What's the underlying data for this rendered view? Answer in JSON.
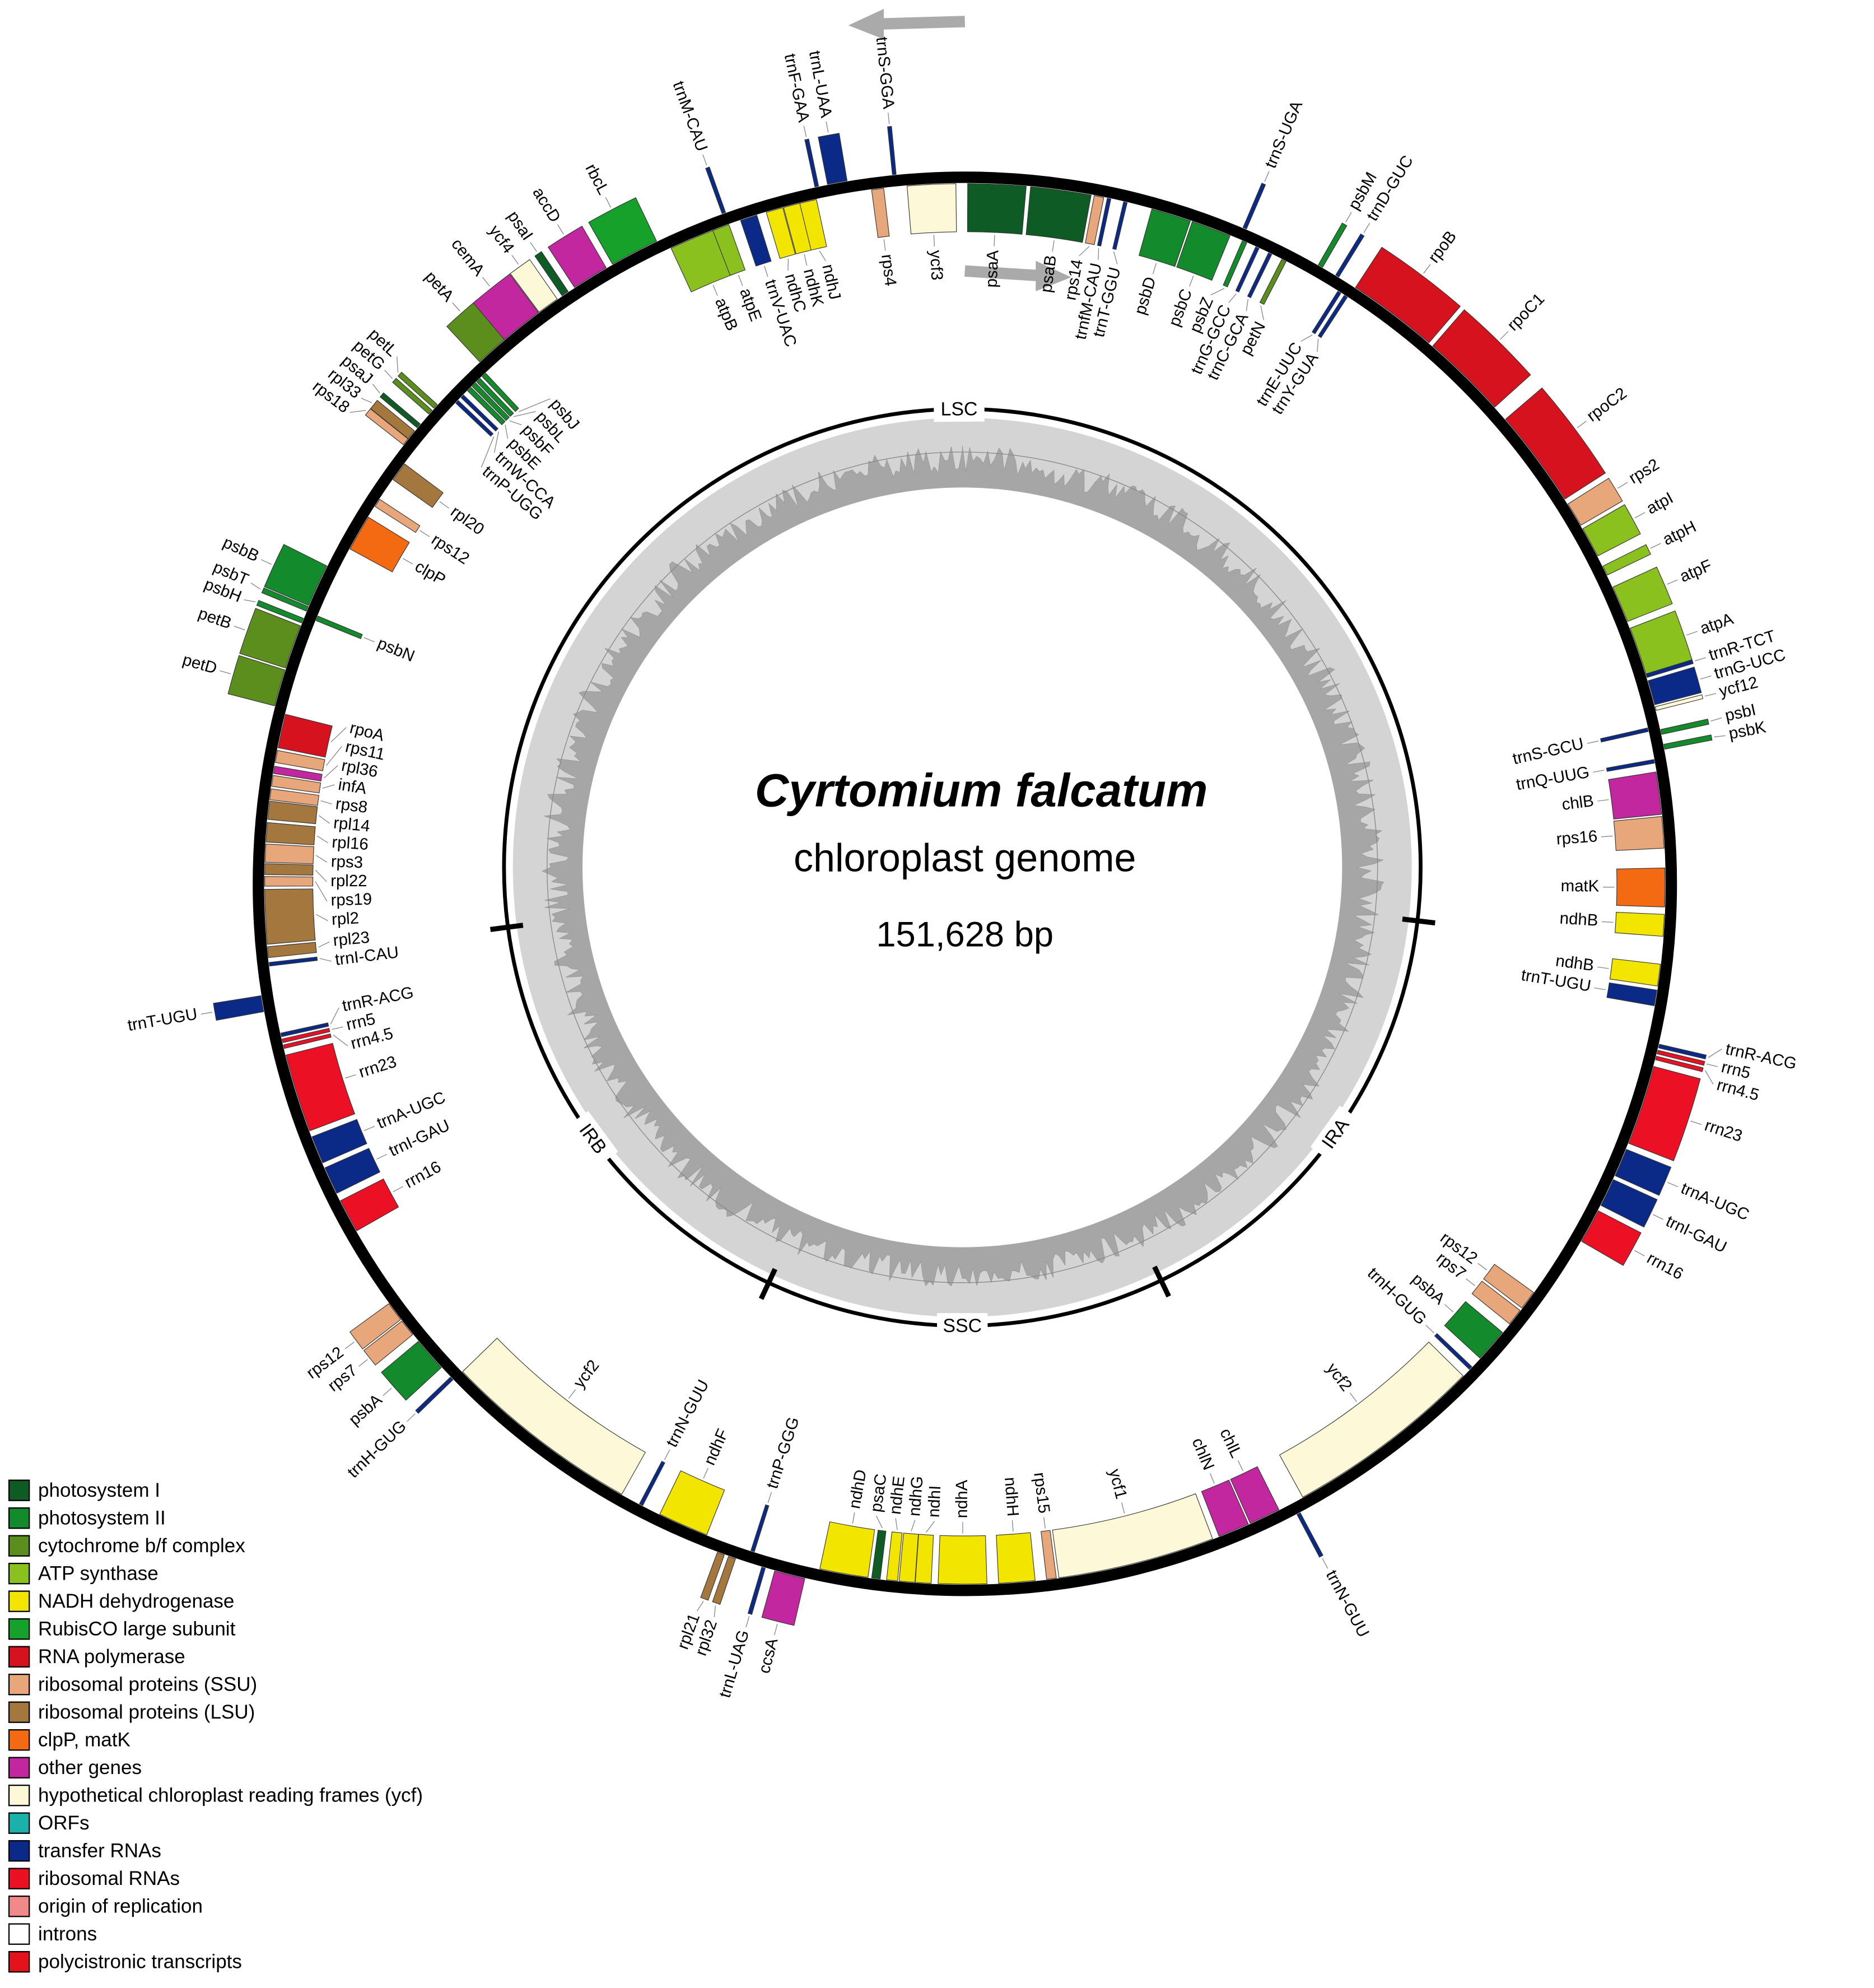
{
  "title": "Cyrtomium falcatum",
  "subtitle": "chloroplast genome",
  "size": "151,628 bp",
  "regions": [
    "LSC",
    "IRA",
    "SSC",
    "IRB"
  ],
  "genes": [
    {
      "name": "psaA",
      "color": "#0e5b25"
    },
    {
      "name": "psaB",
      "color": "#0e5b25"
    },
    {
      "name": "rps14",
      "color": "#e8a77a"
    },
    {
      "name": "trnfM-CAU",
      "color": "#0b2a87"
    },
    {
      "name": "trnT-GGU",
      "color": "#0b2a87"
    },
    {
      "name": "psbD",
      "color": "#138a2b"
    },
    {
      "name": "psbC",
      "color": "#138a2b"
    },
    {
      "name": "trnS-UGA",
      "color": "#0b2a87"
    },
    {
      "name": "psbZ",
      "color": "#138a2b"
    },
    {
      "name": "trnG-GCC",
      "color": "#0b2a87"
    },
    {
      "name": "trnC-GCA",
      "color": "#0b2a87"
    },
    {
      "name": "petN",
      "color": "#5b8e1c"
    },
    {
      "name": "psbM",
      "color": "#138a2b"
    },
    {
      "name": "trnD-GUC",
      "color": "#0b2a87"
    },
    {
      "name": "trnE-UUC",
      "color": "#0b2a87"
    },
    {
      "name": "trnY-GUA",
      "color": "#0b2a87"
    },
    {
      "name": "rpoB",
      "color": "#d7121f"
    },
    {
      "name": "rpoC1",
      "color": "#d7121f"
    },
    {
      "name": "rpoC2",
      "color": "#d7121f"
    },
    {
      "name": "rps2",
      "color": "#e8a77a"
    },
    {
      "name": "atpI",
      "color": "#8bc11e"
    },
    {
      "name": "atpH",
      "color": "#8bc11e"
    },
    {
      "name": "atpF",
      "color": "#8bc11e"
    },
    {
      "name": "atpA",
      "color": "#8bc11e"
    },
    {
      "name": "trnR-TCT",
      "color": "#0b2a87"
    },
    {
      "name": "trnG-UCC",
      "color": "#0b2a87"
    },
    {
      "name": "ycf12",
      "color": "#fdf9d8"
    },
    {
      "name": "trnS-GCU",
      "color": "#0b2a87"
    },
    {
      "name": "psbI",
      "color": "#138a2b"
    },
    {
      "name": "psbK",
      "color": "#138a2b"
    },
    {
      "name": "trnQ-UUG",
      "color": "#0b2a87"
    },
    {
      "name": "chlB",
      "color": "#c3279f"
    },
    {
      "name": "rps16",
      "color": "#e8a77a"
    },
    {
      "name": "matK",
      "color": "#f36a12"
    },
    {
      "name": "ndhB",
      "color": "#f2e600"
    },
    {
      "name": "ndhB",
      "color": "#f2e600"
    },
    {
      "name": "trnT-UGU",
      "color": "#0b2a87"
    },
    {
      "name": "trnR-ACG",
      "color": "#0b2a87"
    },
    {
      "name": "rrn5",
      "color": "#ec1025"
    },
    {
      "name": "rrn4.5",
      "color": "#ec1025"
    },
    {
      "name": "rrn23",
      "color": "#ec1025"
    },
    {
      "name": "trnA-UGC",
      "color": "#0b2a87"
    },
    {
      "name": "trnI-GAU",
      "color": "#0b2a87"
    },
    {
      "name": "rrn16",
      "color": "#ec1025"
    },
    {
      "name": "rps12",
      "color": "#e8a77a"
    },
    {
      "name": "rps7",
      "color": "#e8a77a"
    },
    {
      "name": "psbA",
      "color": "#138a2b"
    },
    {
      "name": "trnH-GUG",
      "color": "#0b2a87"
    },
    {
      "name": "ycf2",
      "color": "#fdf9d8"
    },
    {
      "name": "trnN-GUU",
      "color": "#0b2a87"
    },
    {
      "name": "chlL",
      "color": "#c3279f"
    },
    {
      "name": "chlN",
      "color": "#c3279f"
    },
    {
      "name": "ycf1",
      "color": "#fdf9d8"
    },
    {
      "name": "rps15",
      "color": "#e8a77a"
    },
    {
      "name": "ndhH",
      "color": "#f2e600"
    },
    {
      "name": "ndhA",
      "color": "#f2e600"
    },
    {
      "name": "ndhI",
      "color": "#f2e600"
    },
    {
      "name": "ndhG",
      "color": "#f2e600"
    },
    {
      "name": "ndhE",
      "color": "#f2e600"
    },
    {
      "name": "psaC",
      "color": "#0e5b25"
    },
    {
      "name": "ndhD",
      "color": "#f2e600"
    },
    {
      "name": "ccsA",
      "color": "#c3279f"
    },
    {
      "name": "trnL-UAG",
      "color": "#0b2a87"
    },
    {
      "name": "trnP-GGG",
      "color": "#0b2a87"
    },
    {
      "name": "rpl32",
      "color": "#a4773f"
    },
    {
      "name": "rpl21",
      "color": "#a4773f"
    },
    {
      "name": "ndhF",
      "color": "#f2e600"
    },
    {
      "name": "trnN-GUU",
      "color": "#0b2a87"
    },
    {
      "name": "ycf2",
      "color": "#fdf9d8"
    },
    {
      "name": "trnH-GUG",
      "color": "#0b2a87"
    },
    {
      "name": "psbA",
      "color": "#138a2b"
    },
    {
      "name": "rps7",
      "color": "#e8a77a"
    },
    {
      "name": "rps12",
      "color": "#e8a77a"
    },
    {
      "name": "rrn16",
      "color": "#ec1025"
    },
    {
      "name": "trnI-GAU",
      "color": "#0b2a87"
    },
    {
      "name": "trnA-UGC",
      "color": "#0b2a87"
    },
    {
      "name": "rrn23",
      "color": "#ec1025"
    },
    {
      "name": "rrn4.5",
      "color": "#ec1025"
    },
    {
      "name": "rrn5",
      "color": "#ec1025"
    },
    {
      "name": "trnR-ACG",
      "color": "#0b2a87"
    },
    {
      "name": "trnT-UGU",
      "color": "#0b2a87"
    },
    {
      "name": "trnI-CAU",
      "color": "#0b2a87"
    },
    {
      "name": "rpl23",
      "color": "#a4773f"
    },
    {
      "name": "rpl2",
      "color": "#a4773f"
    },
    {
      "name": "rps19",
      "color": "#e8a77a"
    },
    {
      "name": "rpl22",
      "color": "#a4773f"
    },
    {
      "name": "rps3",
      "color": "#e8a77a"
    },
    {
      "name": "rpl16",
      "color": "#a4773f"
    },
    {
      "name": "rpl14",
      "color": "#a4773f"
    },
    {
      "name": "rps8",
      "color": "#e8a77a"
    },
    {
      "name": "infA",
      "color": "#e8a77a"
    },
    {
      "name": "rpl36",
      "color": "#c3279f"
    },
    {
      "name": "rps11",
      "color": "#e8a77a"
    },
    {
      "name": "rpoA",
      "color": "#d7121f"
    },
    {
      "name": "petD",
      "color": "#5b8e1c"
    },
    {
      "name": "petB",
      "color": "#5b8e1c"
    },
    {
      "name": "psbH",
      "color": "#138a2b"
    },
    {
      "name": "psbN",
      "color": "#138a2b"
    },
    {
      "name": "psbT",
      "color": "#138a2b"
    },
    {
      "name": "psbB",
      "color": "#138a2b"
    },
    {
      "name": "clpP",
      "color": "#f36a12"
    },
    {
      "name": "rps12",
      "color": "#e8a77a"
    },
    {
      "name": "rpl20",
      "color": "#a4773f"
    },
    {
      "name": "rps18",
      "color": "#e8a77a"
    },
    {
      "name": "rpl33",
      "color": "#a4773f"
    },
    {
      "name": "psaJ",
      "color": "#0e5b25"
    },
    {
      "name": "petG",
      "color": "#5b8e1c"
    },
    {
      "name": "petL",
      "color": "#5b8e1c"
    },
    {
      "name": "trnP-UGG",
      "color": "#0b2a87"
    },
    {
      "name": "trnW-CCA",
      "color": "#0b2a87"
    },
    {
      "name": "psbE",
      "color": "#138a2b"
    },
    {
      "name": "psbF",
      "color": "#138a2b"
    },
    {
      "name": "psbL",
      "color": "#138a2b"
    },
    {
      "name": "psbJ",
      "color": "#138a2b"
    },
    {
      "name": "petA",
      "color": "#5b8e1c"
    },
    {
      "name": "cemA",
      "color": "#c3279f"
    },
    {
      "name": "ycf4",
      "color": "#fdf9d8"
    },
    {
      "name": "psaI",
      "color": "#0e5b25"
    },
    {
      "name": "accD",
      "color": "#c3279f"
    },
    {
      "name": "rbcL",
      "color": "#16a12a"
    },
    {
      "name": "atpB",
      "color": "#8bc11e"
    },
    {
      "name": "atpE",
      "color": "#8bc11e"
    },
    {
      "name": "trnM-CAU",
      "color": "#0b2a87"
    },
    {
      "name": "trnV-UAC",
      "color": "#0b2a87"
    },
    {
      "name": "ndhC",
      "color": "#f2e600"
    },
    {
      "name": "ndhK",
      "color": "#f2e600"
    },
    {
      "name": "ndhJ",
      "color": "#f2e600"
    },
    {
      "name": "trnF-GAA",
      "color": "#0b2a87"
    },
    {
      "name": "trnL-UAA",
      "color": "#0b2a87"
    },
    {
      "name": "rps4",
      "color": "#e8a77a"
    },
    {
      "name": "trnS-GGA",
      "color": "#0b2a87"
    },
    {
      "name": "ycf3",
      "color": "#fdf9d8"
    }
  ],
  "legend": [
    {
      "label": "photosystem I",
      "color": "#0e5b25"
    },
    {
      "label": "photosystem II",
      "color": "#138a2b"
    },
    {
      "label": "cytochrome b/f complex",
      "color": "#5b8e1c"
    },
    {
      "label": "ATP synthase",
      "color": "#8bc11e"
    },
    {
      "label": "NADH dehydrogenase",
      "color": "#f2e600"
    },
    {
      "label": "RubisCO large subunit",
      "color": "#16a12a"
    },
    {
      "label": "RNA polymerase",
      "color": "#d7121f"
    },
    {
      "label": "ribosomal proteins (SSU)",
      "color": "#e8a77a"
    },
    {
      "label": "ribosomal proteins (LSU)",
      "color": "#a4773f"
    },
    {
      "label": "clpP, matK",
      "color": "#f36a12"
    },
    {
      "label": "other genes",
      "color": "#c3279f"
    },
    {
      "label": "hypothetical chloroplast reading frames (ycf)",
      "color": "#fdf9d8"
    },
    {
      "label": "ORFs",
      "color": "#19b1a9"
    },
    {
      "label": "transfer RNAs",
      "color": "#0b2a87"
    },
    {
      "label": "ribosomal RNAs",
      "color": "#ec1025"
    },
    {
      "label": "origin of replication",
      "color": "#f08a8a"
    },
    {
      "label": "introns",
      "color": "#ffffff"
    },
    {
      "label": "polycistronic transcripts",
      "color": "#e3121b"
    }
  ]
}
